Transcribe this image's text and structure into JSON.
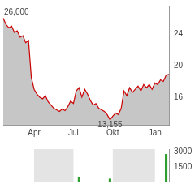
{
  "chart_data": [
    {
      "type": "line",
      "categories": [
        null,
        null,
        null,
        null,
        null,
        null,
        null,
        null,
        null,
        null,
        null,
        "Apr",
        null,
        null,
        null,
        null,
        null,
        null,
        null,
        null,
        null,
        null,
        null,
        null,
        null,
        "Jul",
        null,
        null,
        null,
        null,
        null,
        null,
        null,
        null,
        null,
        null,
        null,
        null,
        null,
        "Okt",
        null,
        null,
        null,
        null,
        null,
        null,
        null,
        null,
        null,
        null,
        null,
        null,
        null,
        null,
        "Jan",
        null,
        null,
        null,
        null,
        null
      ],
      "values": [
        26.0,
        25.2,
        24.8,
        25.0,
        24.2,
        24.4,
        23.6,
        23.8,
        22.9,
        23.2,
        18.5,
        17.0,
        16.4,
        16.0,
        15.8,
        16.2,
        15.4,
        15.0,
        14.6,
        14.4,
        14.2,
        14.5,
        14.3,
        14.8,
        15.5,
        15.2,
        16.8,
        17.2,
        16.0,
        17.0,
        16.4,
        15.6,
        15.0,
        15.2,
        14.6,
        14.4,
        14.2,
        13.8,
        13.155,
        13.6,
        14.0,
        13.8,
        14.6,
        16.8,
        16.2,
        17.2,
        16.6,
        17.0,
        17.4,
        16.8,
        17.6,
        17.2,
        17.6,
        17.0,
        17.8,
        17.6,
        18.2,
        18.0,
        18.8,
        18.9
      ],
      "color": "#cc0000",
      "ylim": [
        12.5,
        27.5
      ],
      "yticks": [
        16,
        20,
        24
      ],
      "grid": false,
      "annotations": [
        {
          "text": "26,000",
          "value": 26.0
        },
        {
          "text": "13,155",
          "value": 13.155
        }
      ]
    },
    {
      "type": "bar",
      "categories": [
        null,
        null,
        null,
        null,
        null,
        null,
        null,
        null,
        null,
        null,
        null,
        "Apr",
        null,
        null,
        null,
        null,
        null,
        null,
        null,
        null,
        null,
        null,
        null,
        null,
        null,
        "Jul",
        null,
        null,
        null,
        null,
        null,
        null,
        null,
        null,
        null,
        null,
        null,
        null,
        null,
        "Okt",
        null,
        null,
        null,
        null,
        null,
        null,
        null,
        null,
        null,
        null,
        null,
        null,
        null,
        null,
        "Jan",
        null,
        null,
        null,
        null,
        null
      ],
      "values": [
        0,
        0,
        0,
        0,
        0,
        0,
        0,
        0,
        0,
        0,
        0,
        0,
        0,
        0,
        0,
        0,
        0,
        0,
        0,
        0,
        0,
        0,
        0,
        0,
        0,
        0,
        0,
        500,
        0,
        0,
        0,
        0,
        0,
        0,
        0,
        0,
        0,
        0,
        300,
        0,
        0,
        0,
        0,
        0,
        0,
        0,
        0,
        0,
        0,
        0,
        0,
        0,
        0,
        0,
        0,
        0,
        0,
        0,
        2800,
        0
      ],
      "color": "#2e9e2e",
      "ylim": [
        0,
        3300
      ],
      "yticks": [
        1500,
        3000
      ],
      "grid": false,
      "tick_labels": "y"
    }
  ]
}
